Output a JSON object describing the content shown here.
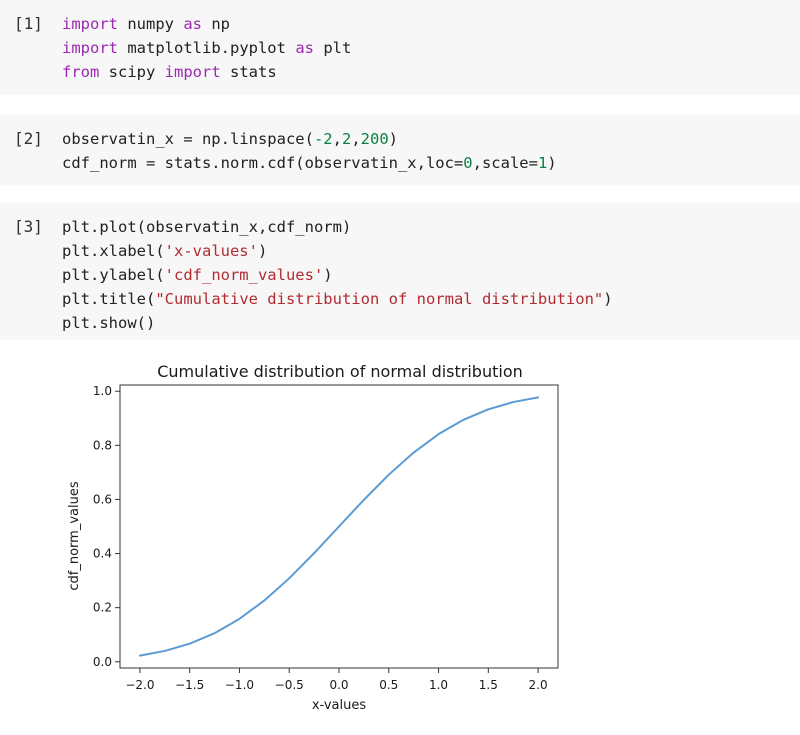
{
  "cells": [
    {
      "prompt": "[1]",
      "lines": [
        [
          {
            "t": "import",
            "c": "kw"
          },
          {
            "t": " numpy ",
            "c": "op"
          },
          {
            "t": "as",
            "c": "kw"
          },
          {
            "t": " np",
            "c": "op"
          }
        ],
        [
          {
            "t": "import",
            "c": "kw"
          },
          {
            "t": " matplotlib.pyplot ",
            "c": "op"
          },
          {
            "t": "as",
            "c": "kw"
          },
          {
            "t": " plt",
            "c": "op"
          }
        ],
        [
          {
            "t": "from",
            "c": "kw"
          },
          {
            "t": " scipy ",
            "c": "op"
          },
          {
            "t": "import",
            "c": "kw"
          },
          {
            "t": " stats",
            "c": "op"
          }
        ]
      ]
    },
    {
      "prompt": "[2]",
      "lines": [
        [
          {
            "t": "observatin_x = np.linspace(",
            "c": "op"
          },
          {
            "t": "-2",
            "c": "num"
          },
          {
            "t": ",",
            "c": "op"
          },
          {
            "t": "2",
            "c": "num"
          },
          {
            "t": ",",
            "c": "op"
          },
          {
            "t": "200",
            "c": "num"
          },
          {
            "t": ")",
            "c": "op"
          }
        ],
        [
          {
            "t": "cdf_norm = stats.norm.cdf(observatin_x,loc=",
            "c": "op"
          },
          {
            "t": "0",
            "c": "num"
          },
          {
            "t": ",scale=",
            "c": "op"
          },
          {
            "t": "1",
            "c": "num"
          },
          {
            "t": ")",
            "c": "op"
          }
        ]
      ]
    },
    {
      "prompt": "[3]",
      "lines": [
        [
          {
            "t": "plt.plot(observatin_x,cdf_norm)",
            "c": "op"
          }
        ],
        [
          {
            "t": "plt.xlabel(",
            "c": "op"
          },
          {
            "t": "'x-values'",
            "c": "str"
          },
          {
            "t": ")",
            "c": "op"
          }
        ],
        [
          {
            "t": "plt.ylabel(",
            "c": "op"
          },
          {
            "t": "'cdf_norm_values'",
            "c": "str"
          },
          {
            "t": ")",
            "c": "op"
          }
        ],
        [
          {
            "t": "plt.title(",
            "c": "op"
          },
          {
            "t": "\"Cumulative distribution of normal distribution\"",
            "c": "str"
          },
          {
            "t": ")",
            "c": "op"
          }
        ],
        [
          {
            "t": "plt.show()",
            "c": "op"
          }
        ]
      ]
    }
  ],
  "chart_data": {
    "type": "line",
    "title": "Cumulative distribution of normal distribution",
    "xlabel": "x-values",
    "ylabel": "cdf_norm_values",
    "xlim": [
      -2.2,
      2.2
    ],
    "ylim": [
      -0.023,
      1.023
    ],
    "xticks": [
      -2.0,
      -1.5,
      -1.0,
      -0.5,
      0.0,
      0.5,
      1.0,
      1.5,
      2.0
    ],
    "xtick_labels": [
      "−2.0",
      "−1.5",
      "−1.0",
      "−0.5",
      "0.0",
      "0.5",
      "1.0",
      "1.5",
      "2.0"
    ],
    "yticks": [
      0.0,
      0.2,
      0.4,
      0.6,
      0.8,
      1.0
    ],
    "ytick_labels": [
      "0.0",
      "0.2",
      "0.4",
      "0.6",
      "0.8",
      "1.0"
    ],
    "grid": false,
    "series_color": "#5b9bd5",
    "x": [
      -2.0,
      -1.75,
      -1.5,
      -1.25,
      -1.0,
      -0.75,
      -0.5,
      -0.25,
      0.0,
      0.25,
      0.5,
      0.75,
      1.0,
      1.25,
      1.5,
      1.75,
      2.0
    ],
    "y": [
      0.0228,
      0.0401,
      0.0668,
      0.1056,
      0.1587,
      0.2266,
      0.3085,
      0.4013,
      0.5,
      0.5987,
      0.6915,
      0.7734,
      0.8413,
      0.8944,
      0.9332,
      0.9599,
      0.9772
    ]
  }
}
